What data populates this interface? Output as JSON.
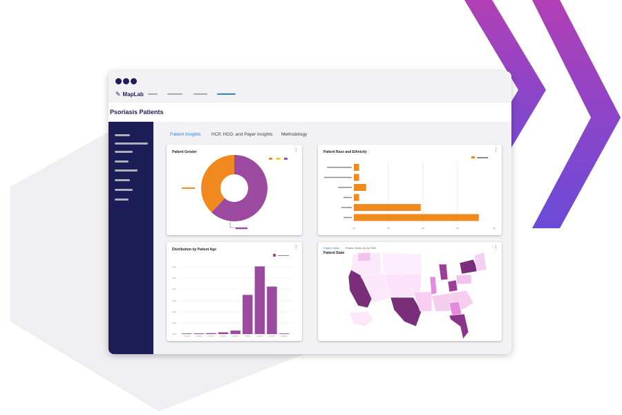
{
  "app": {
    "logo_text": "MapLab",
    "page_title": "Psoriasis Patients"
  },
  "tabs": [
    {
      "label": "Patient Insights",
      "active": true
    },
    {
      "label": "HCP, HCO, and Payer Insights",
      "active": false
    },
    {
      "label": "Methodology",
      "active": false
    }
  ],
  "cards": {
    "gender": {
      "title": "Patient Gender"
    },
    "race": {
      "title": "Patient Race and Ethnicity"
    },
    "age": {
      "title": "Distribution by Patient Age"
    },
    "map": {
      "tab_active": "Patient State",
      "tab_other": "Patient State-Zip by R&E",
      "title": "Patient State"
    }
  },
  "colors": {
    "navy": "#1d1d57",
    "orange": "#f08a1e",
    "purple": "#9b4a9f",
    "yellow": "#f5c518",
    "link": "#2f7dd0"
  },
  "chart_data": [
    {
      "type": "pie",
      "title": "Patient Gender",
      "slices": [
        {
          "value": 62,
          "color": "#9b4a9f"
        },
        {
          "value": 38,
          "color": "#f08a1e"
        }
      ]
    },
    {
      "type": "bar",
      "orientation": "horizontal",
      "title": "Patient Race and Ethnicity",
      "values": [
        3,
        3,
        7,
        3,
        38,
        71
      ],
      "xlim": [
        0,
        75
      ],
      "color": "#f08a1e"
    },
    {
      "type": "bar",
      "title": "Distribution by Patient Age",
      "values": [
        0.5,
        0.6,
        0.8,
        1.5,
        3,
        33,
        57,
        40,
        0.5
      ],
      "ylim": [
        0,
        60
      ],
      "color": "#9b4a9f"
    }
  ]
}
